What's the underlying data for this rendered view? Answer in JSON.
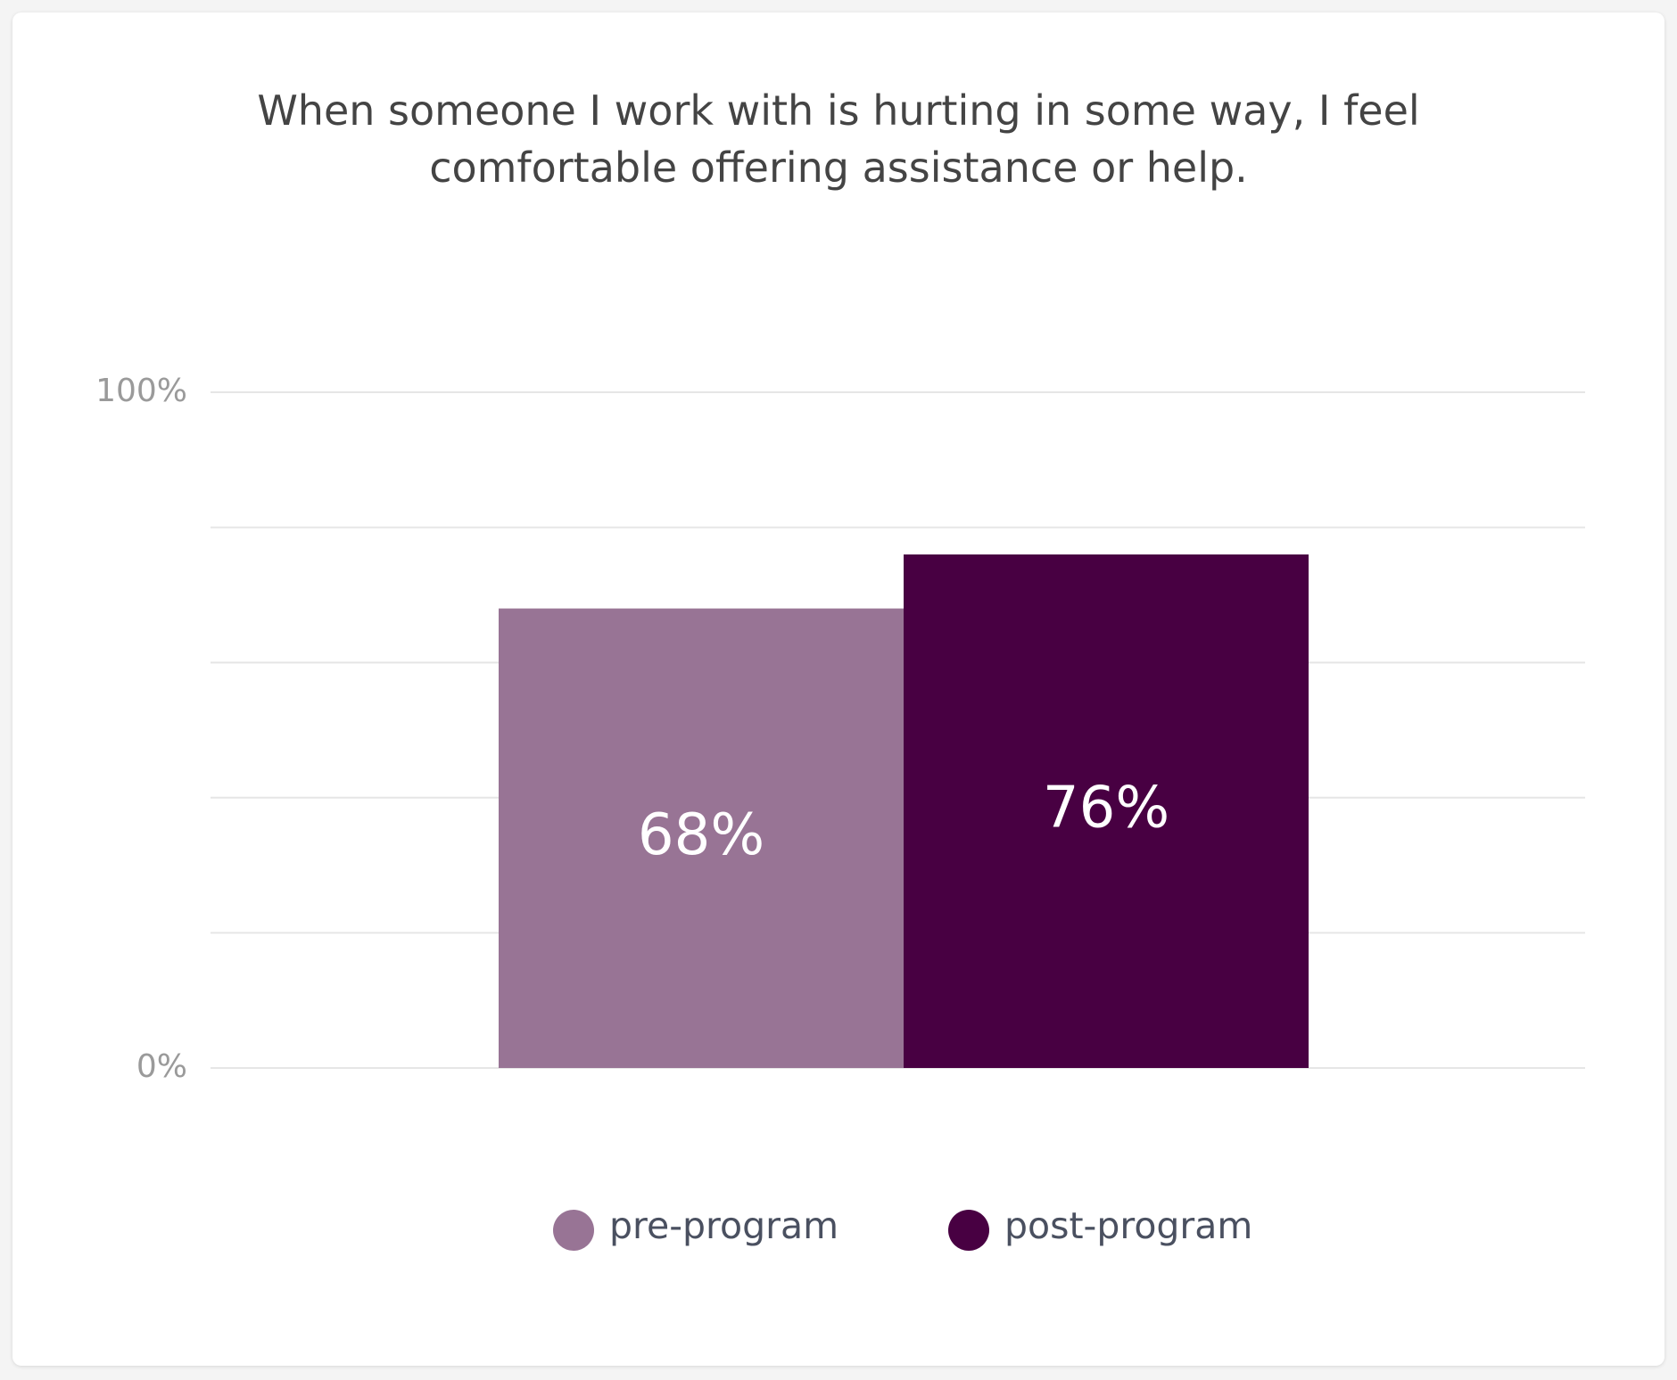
{
  "chart_data": {
    "type": "bar",
    "title": "When someone I work with is hurting in some way, I feel comfortable offering assistance or help.",
    "series": [
      {
        "name": "pre-program",
        "color": "#987495",
        "values": [
          68
        ],
        "value_labels": [
          "68%"
        ]
      },
      {
        "name": "post-program",
        "color": "#480042",
        "values": [
          76
        ],
        "value_labels": [
          "76%"
        ]
      }
    ],
    "ylim": [
      0,
      100
    ],
    "yticks": [
      {
        "value": 0,
        "label": "0%"
      },
      {
        "value": 20,
        "label": null
      },
      {
        "value": 40,
        "label": null
      },
      {
        "value": 60,
        "label": null
      },
      {
        "value": 80,
        "label": null
      },
      {
        "value": 100,
        "label": "100%"
      }
    ],
    "grid": true
  }
}
